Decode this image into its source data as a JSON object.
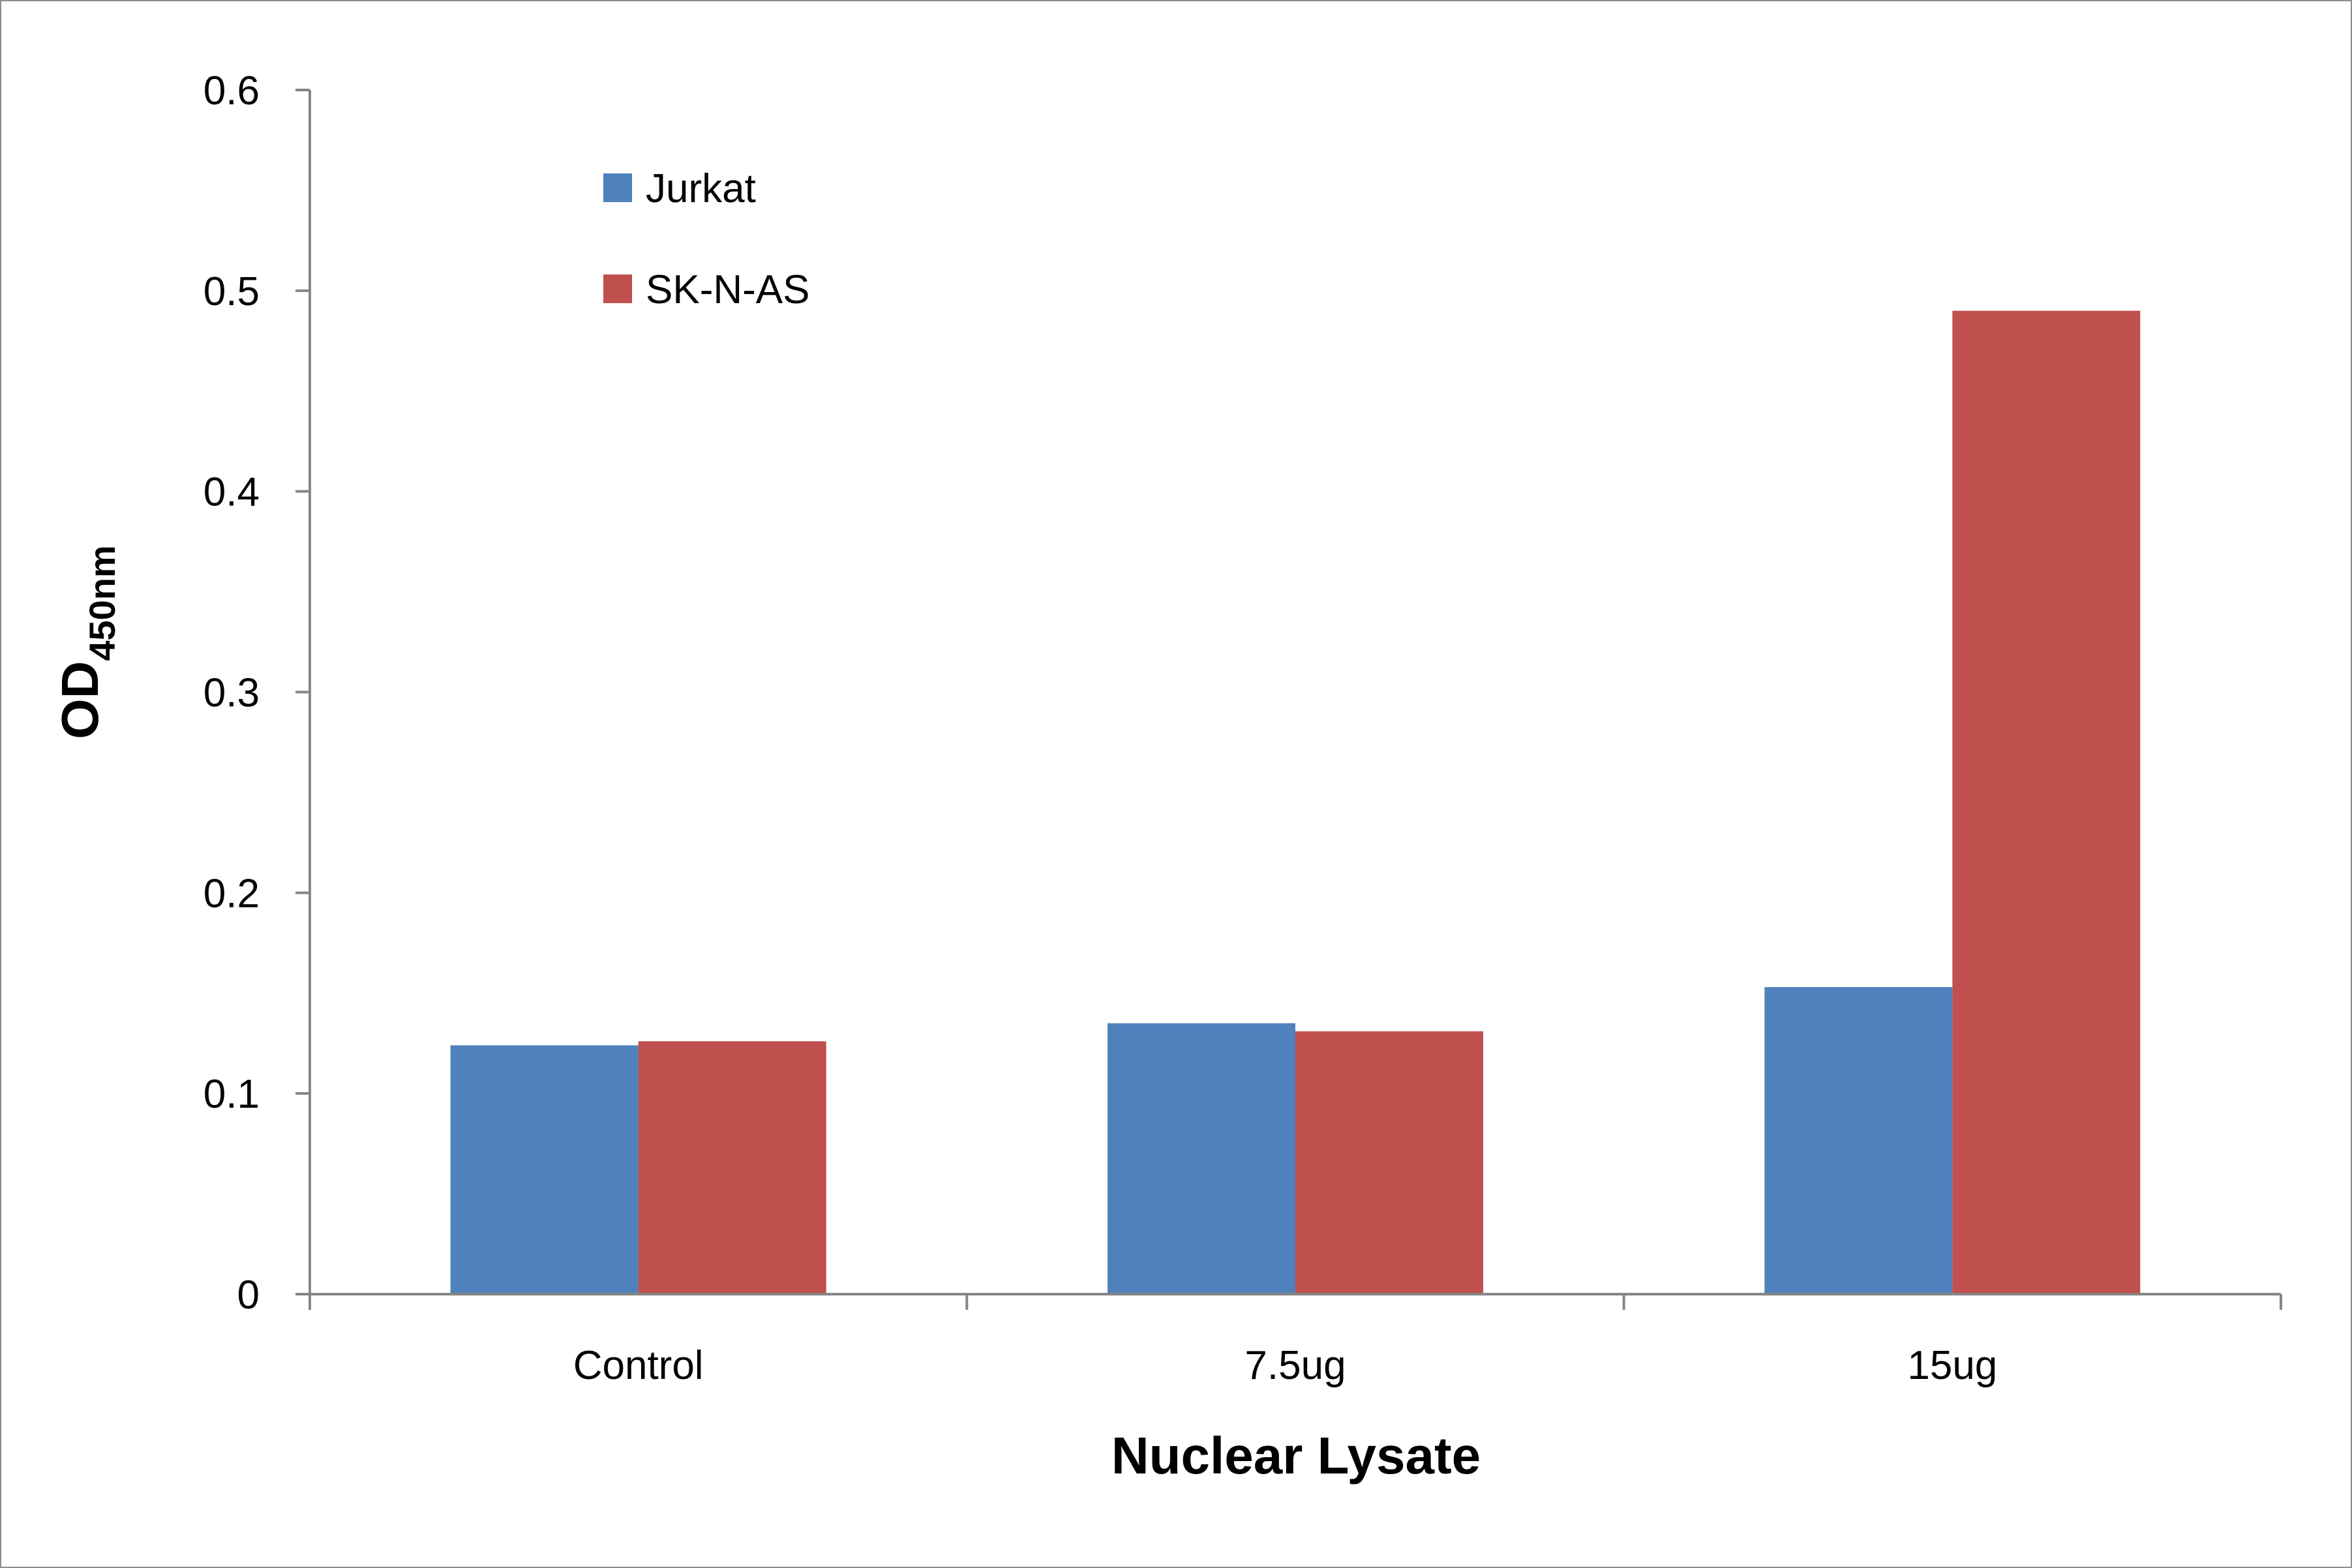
{
  "chart_data": {
    "type": "bar",
    "xlabel": "Nuclear Lysate",
    "ylabel": "OD",
    "ylabel_subscript": "450nm",
    "categories": [
      "Control",
      "7.5ug",
      "15ug"
    ],
    "series": [
      {
        "name": "Jurkat",
        "color": "#4f81bd",
        "values": [
          0.124,
          0.135,
          0.153
        ]
      },
      {
        "name": "SK-N-AS",
        "color": "#c0504d",
        "values": [
          0.126,
          0.131,
          0.49
        ]
      }
    ],
    "ylim": [
      0,
      0.6
    ],
    "yticks": [
      "0",
      "0.1",
      "0.2",
      "0.3",
      "0.4",
      "0.5",
      "0.6"
    ],
    "grid": false,
    "legend_position": "top-left"
  }
}
